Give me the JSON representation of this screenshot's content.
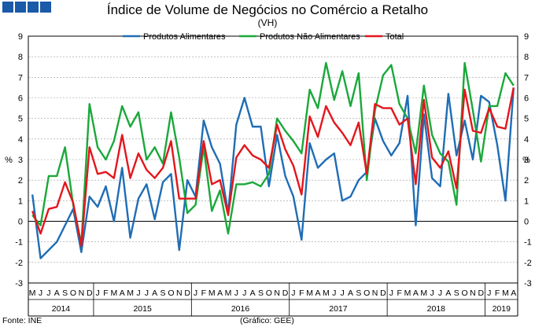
{
  "header": {
    "title": "Índice de Volume de Negócios no Comércio a Retalho",
    "subtitle": "(VH)",
    "logo_color": "#1a5aa8"
  },
  "footer": {
    "source": "Fonte: INE",
    "credit": "(Gráfico: GEE)"
  },
  "chart_data": {
    "type": "line",
    "ylabel_left": "%",
    "ylabel_right": "%",
    "ylim": [
      -3,
      9
    ],
    "yticks": [
      -3,
      -2,
      -1,
      0,
      1,
      2,
      3,
      4,
      5,
      6,
      7,
      8,
      9
    ],
    "grid": true,
    "legend_position": "top-center",
    "x": [
      "M",
      "J",
      "J",
      "A",
      "S",
      "O",
      "N",
      "D",
      "J",
      "F",
      "M",
      "A",
      "M",
      "J",
      "J",
      "A",
      "S",
      "O",
      "N",
      "D",
      "J",
      "F",
      "M",
      "A",
      "M",
      "J",
      "J",
      "A",
      "S",
      "O",
      "N",
      "D",
      "J",
      "F",
      "M",
      "A",
      "M",
      "J",
      "J",
      "A",
      "S",
      "O",
      "N",
      "D",
      "J",
      "F",
      "M",
      "A",
      "M",
      "J",
      "J",
      "A",
      "S",
      "O",
      "N",
      "D",
      "J",
      "F",
      "M",
      "A"
    ],
    "years": [
      {
        "label": "2014",
        "start": 0,
        "end": 7
      },
      {
        "label": "2015",
        "start": 8,
        "end": 19
      },
      {
        "label": "2016",
        "start": 20,
        "end": 31
      },
      {
        "label": "2017",
        "start": 32,
        "end": 43
      },
      {
        "label": "2018",
        "start": 44,
        "end": 55
      },
      {
        "label": "2019",
        "start": 56,
        "end": 59
      }
    ],
    "series": [
      {
        "name": "Produtos Alimentares",
        "color": "#1f6db5",
        "values": [
          1.3,
          -1.8,
          -1.4,
          -1.0,
          -0.2,
          0.6,
          -1.5,
          1.2,
          0.7,
          1.7,
          0.0,
          2.6,
          -0.8,
          1.1,
          1.8,
          0.1,
          1.9,
          2.3,
          -1.4,
          2.0,
          1.2,
          4.9,
          3.6,
          2.8,
          0.4,
          4.7,
          6.0,
          4.6,
          4.6,
          1.7,
          4.2,
          2.2,
          1.2,
          -0.9,
          3.8,
          2.6,
          3.0,
          3.3,
          1.0,
          1.2,
          2.0,
          2.4,
          5.0,
          3.9,
          3.2,
          3.8,
          6.1,
          -0.2,
          5.2,
          2.1,
          1.7,
          6.2,
          3.2,
          4.9,
          3.0,
          6.1,
          5.8,
          3.7,
          1.0,
          6.5
        ]
      },
      {
        "name": "Produtos Não Alimentares",
        "color": "#1aa83a",
        "values": [
          0.3,
          -0.2,
          2.2,
          2.2,
          3.6,
          0.8,
          -1.1,
          5.7,
          3.6,
          3.0,
          3.9,
          5.6,
          4.6,
          5.3,
          3.0,
          3.6,
          2.8,
          5.3,
          3.1,
          0.4,
          0.8,
          3.6,
          0.5,
          1.5,
          -0.6,
          1.8,
          1.8,
          1.9,
          1.7,
          2.3,
          5.0,
          4.4,
          3.9,
          3.3,
          6.4,
          5.5,
          7.7,
          5.9,
          7.3,
          5.6,
          7.2,
          2.0,
          5.4,
          7.1,
          7.6,
          5.7,
          5.0,
          3.3,
          6.6,
          4.2,
          3.3,
          2.9,
          0.8,
          7.7,
          5.4,
          2.9,
          5.6,
          5.6,
          7.2,
          6.6
        ]
      },
      {
        "name": "Total",
        "color": "#e3161c",
        "values": [
          0.5,
          -0.6,
          0.6,
          0.7,
          1.9,
          0.9,
          -1.2,
          3.6,
          2.3,
          2.4,
          2.1,
          4.2,
          2.1,
          3.3,
          2.5,
          2.1,
          2.6,
          3.9,
          1.1,
          1.1,
          1.1,
          3.9,
          1.8,
          2.0,
          0.3,
          3.1,
          3.7,
          3.2,
          3.0,
          2.6,
          4.7,
          3.5,
          2.7,
          1.3,
          5.1,
          4.1,
          5.6,
          4.8,
          4.3,
          3.7,
          4.8,
          2.3,
          5.7,
          5.5,
          5.5,
          4.7,
          5.0,
          1.8,
          5.9,
          3.1,
          2.6,
          3.4,
          1.6,
          6.4,
          4.4,
          4.3,
          5.5,
          4.6,
          4.5,
          6.5
        ]
      }
    ]
  }
}
